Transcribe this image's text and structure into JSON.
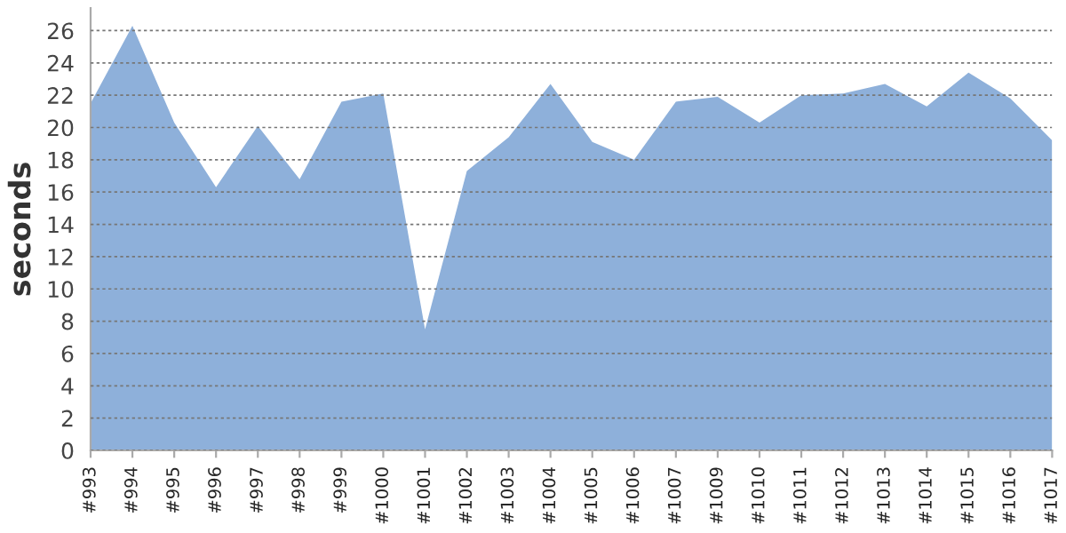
{
  "chart_data": {
    "type": "area",
    "ylabel": "seconds",
    "categories": [
      "#993",
      "#994",
      "#995",
      "#996",
      "#997",
      "#998",
      "#999",
      "#1000",
      "#1001",
      "#1002",
      "#1003",
      "#1004",
      "#1005",
      "#1006",
      "#1007",
      "#1009",
      "#1010",
      "#1011",
      "#1012",
      "#1013",
      "#1014",
      "#1015",
      "#1016",
      "#1017"
    ],
    "series": [
      {
        "color": "#8eb0da",
        "values": [
          21.5,
          26.3,
          20.3,
          16.3,
          20.1,
          16.8,
          21.6,
          22.1,
          7.5,
          17.3,
          19.4,
          22.7,
          19.1,
          18.0,
          21.6,
          21.9,
          20.3,
          22.0,
          22.1,
          22.7,
          21.3,
          23.4,
          21.8,
          19.2
        ]
      }
    ],
    "ylim": [
      0,
      27.4
    ],
    "yticks": [
      0,
      2,
      4,
      6,
      8,
      10,
      12,
      14,
      16,
      18,
      20,
      22,
      24,
      26
    ],
    "grid": "y"
  }
}
